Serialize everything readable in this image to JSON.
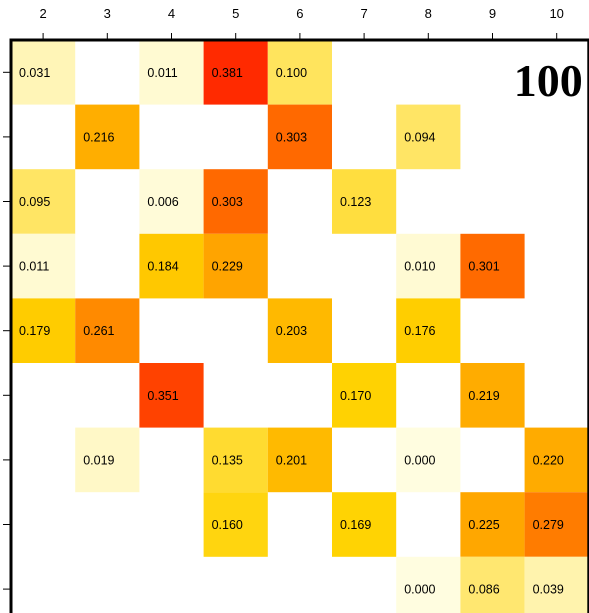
{
  "chart_data": {
    "type": "heatmap",
    "title": "",
    "xlabel": "",
    "ylabel": "",
    "annotation": "100",
    "x_ticks": [
      "2",
      "3",
      "4",
      "5",
      "6",
      "7",
      "8",
      "9",
      "10"
    ],
    "row_count": 9,
    "color_scale": {
      "low": "#fffde0",
      "mid": "#ffd200",
      "high": "#ff2a00"
    },
    "cells": [
      {
        "row": 0,
        "col": 0,
        "value": 0.031
      },
      {
        "row": 0,
        "col": 2,
        "value": 0.011
      },
      {
        "row": 0,
        "col": 3,
        "value": 0.381
      },
      {
        "row": 0,
        "col": 4,
        "value": 0.1
      },
      {
        "row": 1,
        "col": 1,
        "value": 0.216
      },
      {
        "row": 1,
        "col": 4,
        "value": 0.303
      },
      {
        "row": 1,
        "col": 6,
        "value": 0.094
      },
      {
        "row": 2,
        "col": 0,
        "value": 0.095
      },
      {
        "row": 2,
        "col": 2,
        "value": 0.006
      },
      {
        "row": 2,
        "col": 3,
        "value": 0.303
      },
      {
        "row": 2,
        "col": 5,
        "value": 0.123
      },
      {
        "row": 3,
        "col": 0,
        "value": 0.011
      },
      {
        "row": 3,
        "col": 2,
        "value": 0.184
      },
      {
        "row": 3,
        "col": 3,
        "value": 0.229
      },
      {
        "row": 3,
        "col": 6,
        "value": 0.01
      },
      {
        "row": 3,
        "col": 7,
        "value": 0.301
      },
      {
        "row": 4,
        "col": 0,
        "value": 0.179
      },
      {
        "row": 4,
        "col": 1,
        "value": 0.261
      },
      {
        "row": 4,
        "col": 4,
        "value": 0.203
      },
      {
        "row": 4,
        "col": 6,
        "value": 0.176
      },
      {
        "row": 5,
        "col": 2,
        "value": 0.351
      },
      {
        "row": 5,
        "col": 5,
        "value": 0.17
      },
      {
        "row": 5,
        "col": 7,
        "value": 0.219
      },
      {
        "row": 6,
        "col": 1,
        "value": 0.019
      },
      {
        "row": 6,
        "col": 3,
        "value": 0.135
      },
      {
        "row": 6,
        "col": 4,
        "value": 0.201
      },
      {
        "row": 6,
        "col": 6,
        "value": 0.0
      },
      {
        "row": 6,
        "col": 8,
        "value": 0.22
      },
      {
        "row": 7,
        "col": 3,
        "value": 0.16
      },
      {
        "row": 7,
        "col": 5,
        "value": 0.169
      },
      {
        "row": 7,
        "col": 7,
        "value": 0.225
      },
      {
        "row": 7,
        "col": 8,
        "value": 0.279
      },
      {
        "row": 8,
        "col": 6,
        "value": 0.0
      },
      {
        "row": 8,
        "col": 7,
        "value": 0.086
      },
      {
        "row": 8,
        "col": 8,
        "value": 0.039
      }
    ]
  }
}
